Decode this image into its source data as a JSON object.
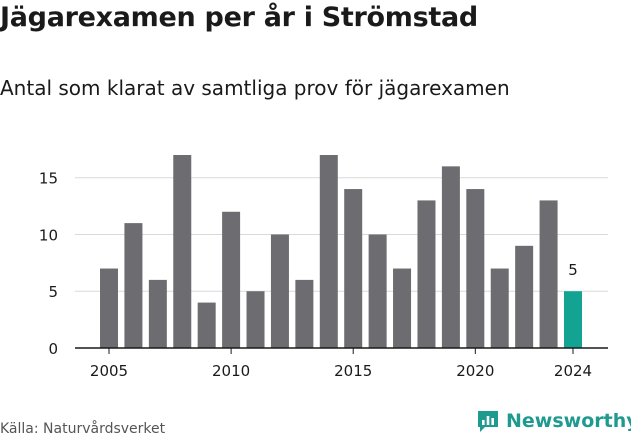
{
  "header": {
    "title": "Jägarexamen per år i Strömstad",
    "subtitle": "Antal som klarat av samtliga prov för jägarexamen"
  },
  "footer": {
    "source": "Källa: Naturvårdsverket",
    "brand": "Newsworthy",
    "brand_icon": "newsworthy-logo-icon"
  },
  "colors": {
    "bar": "#6d6c70",
    "highlight": "#12a392",
    "grid": "#d9d9d9",
    "axis": "#1a1a1a",
    "brand": "#1f9a8f"
  },
  "chart_data": {
    "type": "bar",
    "title": "Jägarexamen per år i Strömstad",
    "subtitle": "Antal som klarat av samtliga prov för jägarexamen",
    "categories": [
      2005,
      2006,
      2007,
      2008,
      2009,
      2010,
      2011,
      2012,
      2013,
      2014,
      2015,
      2016,
      2017,
      2018,
      2019,
      2020,
      2021,
      2022,
      2023,
      2024
    ],
    "values": [
      7,
      11,
      6,
      17,
      4,
      12,
      5,
      10,
      6,
      17,
      14,
      10,
      7,
      13,
      16,
      14,
      7,
      9,
      13,
      5
    ],
    "highlight_category": 2024,
    "data_labels": [
      {
        "category": 2024,
        "label": "5"
      }
    ],
    "xticks": [
      2005,
      2010,
      2015,
      2020,
      2024
    ],
    "yticks": [
      0,
      5,
      10,
      15
    ],
    "ylim": [
      0,
      17
    ],
    "xlabel": "",
    "ylabel": "",
    "grid": "horizontal",
    "legend": "none"
  }
}
